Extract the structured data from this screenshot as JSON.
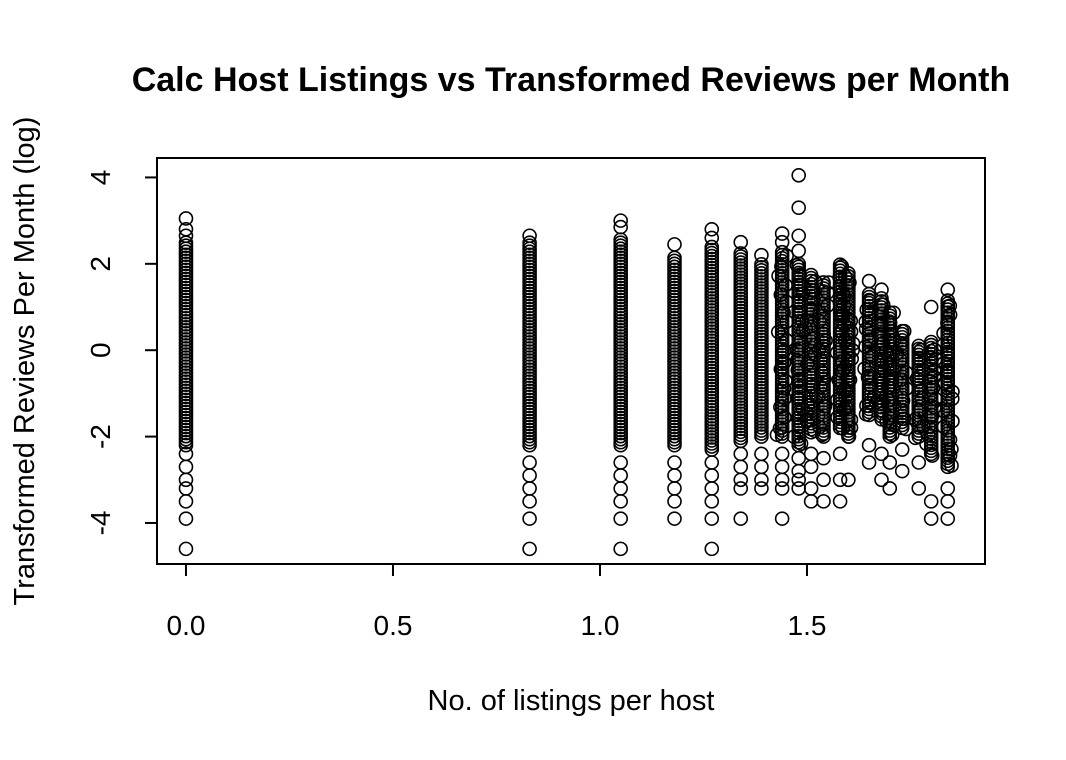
{
  "chart_data": {
    "type": "scatter",
    "title": "Calc Host Listings vs Transformed Reviews per Month",
    "xlabel": "No. of listings per host",
    "ylabel": "Transformed Reviews Per Month (log)",
    "xlim": [
      -0.07,
      1.93
    ],
    "ylim": [
      -4.95,
      4.45
    ],
    "x_ticks": [
      0.0,
      0.5,
      1.0,
      1.5
    ],
    "x_tick_labels": [
      "0.0",
      "0.5",
      "1.0",
      "1.5"
    ],
    "y_ticks": [
      -4,
      -2,
      0,
      2,
      4
    ],
    "y_tick_labels": [
      "-4",
      "-2",
      "0",
      "2",
      "4"
    ],
    "grid": false,
    "marker": "open-circle",
    "color": "#000000",
    "columns": [
      {
        "x": 0.0,
        "ymin": -2.2,
        "ymax": 2.5,
        "extra": [
          3.05,
          2.8,
          2.65,
          -2.4,
          -2.7,
          -3.0,
          -3.2,
          -3.5,
          -3.9,
          -4.6
        ]
      },
      {
        "x": 0.83,
        "ymin": -2.2,
        "ymax": 2.5,
        "extra": [
          2.65,
          -2.6,
          -2.9,
          -3.2,
          -3.5,
          -3.9,
          -4.6
        ]
      },
      {
        "x": 1.05,
        "ymin": -2.2,
        "ymax": 2.6,
        "extra": [
          3.0,
          2.85,
          -2.6,
          -2.9,
          -3.2,
          -3.5,
          -3.9,
          -4.6
        ]
      },
      {
        "x": 1.18,
        "ymin": -2.2,
        "ymax": 2.2,
        "extra": [
          2.45,
          -2.6,
          -2.9,
          -3.2,
          -3.5,
          -3.9
        ]
      },
      {
        "x": 1.27,
        "ymin": -2.3,
        "ymax": 2.4,
        "extra": [
          2.8,
          2.6,
          -2.6,
          -2.9,
          -3.2,
          -3.5,
          -3.9,
          -4.6
        ]
      },
      {
        "x": 1.34,
        "ymin": -2.1,
        "ymax": 2.3,
        "extra": [
          2.5,
          -2.4,
          -2.7,
          -3.0,
          -3.2,
          -3.9
        ]
      },
      {
        "x": 1.39,
        "ymin": -2.0,
        "ymax": 2.0,
        "extra": [
          2.2,
          -2.4,
          -2.7,
          -3.0,
          -3.2
        ]
      },
      {
        "x": 1.44,
        "ymin": -2.0,
        "ymax": 2.3,
        "extra": [
          2.7,
          2.5,
          -2.4,
          -2.7,
          -3.0,
          -3.2,
          -3.9
        ]
      },
      {
        "x": 1.48,
        "ymin": -2.2,
        "ymax": 2.0,
        "extra": [
          4.05,
          3.3,
          2.65,
          2.3,
          -2.5,
          -2.8,
          -3.0,
          -3.2
        ]
      },
      {
        "x": 1.51,
        "ymin": -1.9,
        "ymax": 1.8,
        "extra": [
          -2.4,
          -2.7,
          -3.2,
          -3.5
        ]
      },
      {
        "x": 1.54,
        "ymin": -2.0,
        "ymax": 1.6,
        "extra": [
          -2.5,
          -3.0,
          -3.5
        ]
      },
      {
        "x": 1.58,
        "ymin": -1.8,
        "ymax": 2.0,
        "extra": [
          -2.4,
          -3.0,
          -3.5
        ]
      },
      {
        "x": 1.6,
        "ymin": -2.0,
        "ymax": 1.8,
        "extra": [
          -3.0
        ]
      },
      {
        "x": 1.65,
        "ymin": -1.5,
        "ymax": 1.3,
        "extra": [
          1.6,
          -2.2,
          -2.6
        ]
      },
      {
        "x": 1.68,
        "ymin": -1.6,
        "ymax": 1.2,
        "extra": [
          1.4,
          -2.4,
          -3.0
        ]
      },
      {
        "x": 1.7,
        "ymin": -2.0,
        "ymax": 0.9,
        "extra": [
          -2.6,
          -3.2
        ]
      },
      {
        "x": 1.73,
        "ymin": -1.8,
        "ymax": 0.5,
        "extra": [
          -2.3,
          -2.8
        ]
      },
      {
        "x": 1.77,
        "ymin": -2.0,
        "ymax": 0.1,
        "extra": [
          -2.6,
          -3.2
        ]
      },
      {
        "x": 1.8,
        "ymin": -2.4,
        "ymax": 0.2,
        "extra": [
          1.0,
          -3.5,
          -3.9
        ]
      },
      {
        "x": 1.84,
        "ymin": -2.7,
        "ymax": 1.2,
        "extra": [
          1.4,
          -3.2,
          -3.5,
          -3.9
        ]
      }
    ]
  }
}
